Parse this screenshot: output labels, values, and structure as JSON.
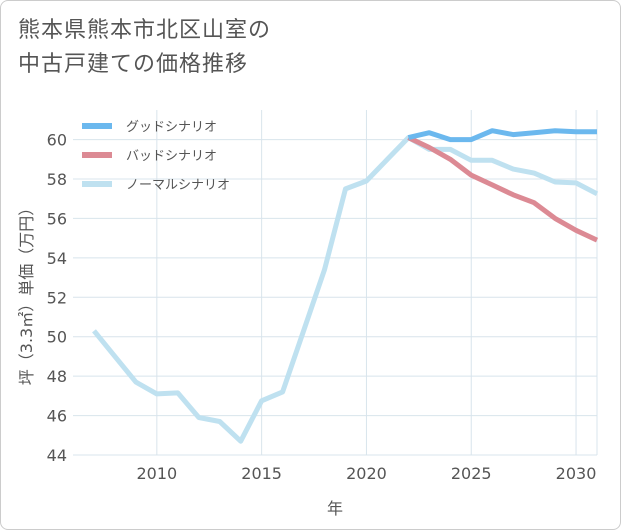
{
  "title_lines": [
    "熊本県熊本市北区山室の",
    "中古戸建ての価格推移"
  ],
  "colors": {
    "good": "#6bb8ee",
    "bad": "#dc8a94",
    "normal": "#bfe1f0",
    "grid": "#d8e4ec",
    "axis_text": "#555555"
  },
  "chart_data": {
    "type": "line",
    "xlabel": "年",
    "ylabel": "坪（3.3㎡）単価（万円）",
    "xlim": [
      2006,
      2031
    ],
    "ylim": [
      44,
      61.5
    ],
    "x_ticks": [
      2010,
      2015,
      2020,
      2025,
      2030
    ],
    "y_ticks": [
      44,
      46,
      48,
      50,
      52,
      54,
      56,
      58,
      60
    ],
    "grid": true,
    "legend_position": "top-left",
    "series": [
      {
        "name": "グッドシナリオ",
        "color": "#6bb8ee",
        "x": [
          2022,
          2023,
          2024,
          2025,
          2026,
          2027,
          2028,
          2029,
          2030,
          2031
        ],
        "y": [
          60.1,
          60.35,
          60.0,
          60.0,
          60.45,
          60.25,
          60.35,
          60.45,
          60.4,
          60.4
        ]
      },
      {
        "name": "バッドシナリオ",
        "color": "#dc8a94",
        "x": [
          2022,
          2023,
          2024,
          2025,
          2026,
          2027,
          2028,
          2029,
          2030,
          2031
        ],
        "y": [
          60.1,
          59.6,
          59.0,
          58.2,
          57.7,
          57.2,
          56.8,
          56.0,
          55.4,
          54.9
        ]
      },
      {
        "name": "ノーマルシナリオ",
        "color": "#bfe1f0",
        "x": [
          2007,
          2008,
          2009,
          2010,
          2011,
          2012,
          2013,
          2014,
          2015,
          2016,
          2017,
          2018,
          2019,
          2020,
          2021,
          2022,
          2023,
          2024,
          2025,
          2026,
          2027,
          2028,
          2029,
          2030,
          2031
        ],
        "y": [
          50.3,
          49.0,
          47.7,
          47.1,
          47.15,
          45.9,
          45.7,
          44.7,
          46.75,
          47.2,
          50.3,
          53.4,
          57.5,
          57.9,
          59.0,
          60.1,
          59.5,
          59.5,
          58.95,
          58.95,
          58.5,
          58.3,
          57.85,
          57.8,
          57.25
        ]
      }
    ]
  }
}
